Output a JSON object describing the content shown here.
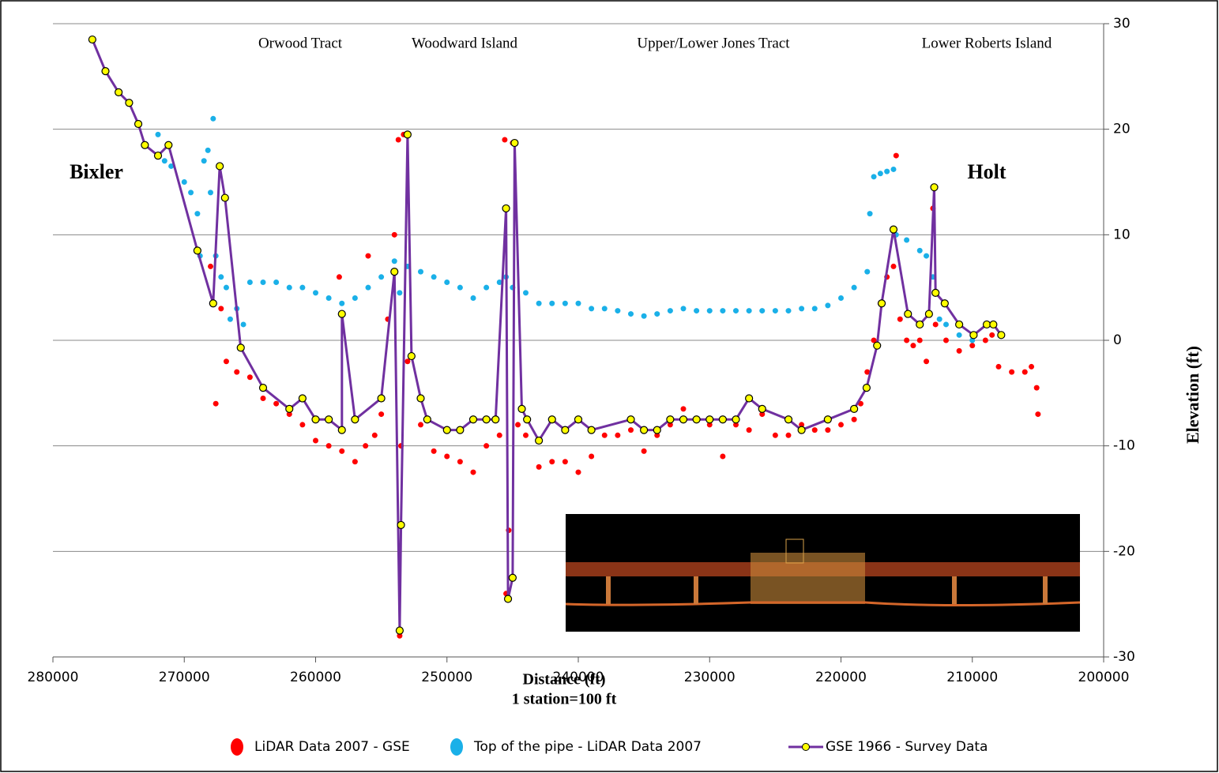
{
  "chart_data": {
    "type": "scatter",
    "annotations": [
      "Orwood Tract",
      "Woodward Island",
      "Upper/Lower Jones Tract",
      "Lower Roberts Island",
      "Bixler",
      "Holt"
    ],
    "xlabel": "Distance (ft)",
    "xlabel2": "1 station=100 ft",
    "ylabel": "Elevation (ft)",
    "xlim": [
      280000,
      200000
    ],
    "xticks": [
      280000,
      270000,
      260000,
      250000,
      240000,
      230000,
      220000,
      210000,
      200000
    ],
    "ylim": [
      -30,
      30
    ],
    "yticks": [
      -30,
      -20,
      -10,
      0,
      10,
      20,
      30
    ],
    "grid": true,
    "series": [
      {
        "name": "LiDAR Data 2007 - GSE",
        "color": "#ff0000",
        "line": false,
        "x": [
          268000,
          267600,
          267200,
          266800,
          266000,
          265000,
          264000,
          263000,
          262000,
          261000,
          260000,
          259000,
          258200,
          258000,
          257000,
          256200,
          256000,
          255500,
          255000,
          254500,
          254000,
          253700,
          253600,
          253500,
          253300,
          253000,
          252000,
          251000,
          250000,
          249000,
          248000,
          247000,
          246000,
          245600,
          245500,
          245300,
          245000,
          244600,
          244000,
          243000,
          242000,
          241000,
          240000,
          239000,
          238000,
          237000,
          236000,
          235000,
          234000,
          233000,
          232000,
          231000,
          230000,
          229000,
          228000,
          227000,
          226000,
          225000,
          224000,
          223000,
          222000,
          221000,
          220000,
          219000,
          218500,
          218000,
          217500,
          217000,
          216500,
          216000,
          215800,
          215500,
          215000,
          214500,
          214000,
          213500,
          213000,
          212800,
          212000,
          211000,
          210000,
          209000,
          208500,
          208000,
          207000,
          206000,
          205500,
          205100,
          205000
        ],
        "values": [
          7,
          -6,
          3,
          -2,
          -3,
          -3.5,
          -5.5,
          -6,
          -7,
          -8,
          -9.5,
          -10,
          6,
          -10.5,
          -11.5,
          -10,
          8,
          -9,
          -7,
          2,
          10,
          19,
          -28,
          -10,
          19.5,
          -2,
          -8,
          -10.5,
          -11,
          -11.5,
          -12.5,
          -10,
          -9,
          19,
          -24,
          -18,
          18.7,
          -8,
          -9,
          -12,
          -11.5,
          -11.5,
          -12.5,
          -11,
          -9,
          -9,
          -8.5,
          -10.5,
          -9,
          -8,
          -6.5,
          -7.5,
          -8,
          -11,
          -8,
          -8.5,
          -7,
          -9,
          -9,
          -8,
          -8.5,
          -8.5,
          -8,
          -7.5,
          -6,
          -3,
          0,
          3.5,
          6,
          7,
          17.5,
          2,
          0,
          -0.5,
          0,
          -2,
          12.5,
          1.5,
          0,
          -1,
          -0.5,
          0,
          0.5,
          -2.5,
          -3,
          -3,
          -2.5,
          -4.5,
          -7
        ]
      },
      {
        "name": "Top of the pipe - LiDAR Data 2007",
        "color": "#1ab0e8",
        "line": false,
        "x": [
          272000,
          271500,
          271000,
          270000,
          269500,
          269000,
          268800,
          268500,
          268200,
          268000,
          267800,
          267600,
          267200,
          266800,
          266500,
          266000,
          265500,
          265000,
          264000,
          263000,
          262000,
          261000,
          260000,
          259000,
          258000,
          257000,
          256000,
          255000,
          254000,
          253600,
          253000,
          252000,
          251000,
          250000,
          249000,
          248000,
          247000,
          246000,
          245500,
          245000,
          244000,
          243000,
          242000,
          241000,
          240000,
          239000,
          238000,
          237000,
          236000,
          235000,
          234000,
          233000,
          232000,
          231000,
          230000,
          229000,
          228000,
          227000,
          226000,
          225000,
          224000,
          223000,
          222000,
          221000,
          220000,
          219000,
          218000,
          217800,
          217500,
          217000,
          216500,
          216000,
          215800,
          215000,
          214000,
          213500,
          213000,
          212500,
          212000,
          211000,
          210000
        ],
        "values": [
          19.5,
          17,
          16.5,
          15,
          14,
          12,
          8,
          17,
          18,
          14,
          21,
          8,
          6,
          5,
          2,
          3,
          1.5,
          5.5,
          5.5,
          5.5,
          5,
          5,
          4.5,
          4,
          3.5,
          4,
          5,
          6,
          7.5,
          4.5,
          7,
          6.5,
          6,
          5.5,
          5,
          4,
          5,
          5.5,
          6,
          5,
          4.5,
          3.5,
          3.5,
          3.5,
          3.5,
          3,
          3,
          2.8,
          2.5,
          2.3,
          2.5,
          2.8,
          3,
          2.8,
          2.8,
          2.8,
          2.8,
          2.8,
          2.8,
          2.8,
          2.8,
          3,
          3,
          3.3,
          4,
          5,
          6.5,
          12,
          15.5,
          15.8,
          16,
          16.2,
          10,
          9.5,
          8.5,
          8,
          6,
          2,
          1.5,
          0.5,
          0
        ]
      },
      {
        "name": "GSE 1966 - Survey Data",
        "color": "#7030a0",
        "marker_color": "#ffff00",
        "line": true,
        "x": [
          277000,
          276000,
          275000,
          274200,
          273500,
          273000,
          272000,
          271200,
          269000,
          267800,
          267300,
          266900,
          265700,
          264000,
          262000,
          261000,
          260000,
          259000,
          258000,
          258000,
          257000,
          255000,
          254000,
          253600,
          253500,
          253000,
          252700,
          252000,
          251500,
          250000,
          249000,
          248000,
          247000,
          246300,
          245500,
          245350,
          245000,
          244850,
          244300,
          243900,
          243000,
          242000,
          241000,
          240000,
          239000,
          236000,
          235000,
          234000,
          233000,
          232000,
          231000,
          230000,
          229000,
          228000,
          227000,
          226000,
          224000,
          223000,
          221000,
          219000,
          218050,
          217250,
          216900,
          216000,
          214900,
          214000,
          213300,
          212900,
          212800,
          212100,
          211000,
          209900,
          208900,
          208400,
          207800
        ],
        "values": [
          28.5,
          25.5,
          23.5,
          22.5,
          20.5,
          18.5,
          17.5,
          18.5,
          8.5,
          3.5,
          16.5,
          13.5,
          -0.7,
          -4.5,
          -6.5,
          -5.5,
          -7.5,
          -7.5,
          -8.5,
          2.5,
          -7.5,
          -5.5,
          6.5,
          -27.5,
          -17.5,
          19.5,
          -1.5,
          -5.5,
          -7.5,
          -8.5,
          -8.5,
          -7.5,
          -7.5,
          -7.5,
          12.5,
          -24.5,
          -22.5,
          18.7,
          -6.5,
          -7.5,
          -9.5,
          -7.5,
          -8.5,
          -7.5,
          -8.5,
          -7.5,
          -8.5,
          -8.5,
          -7.5,
          -7.5,
          -7.5,
          -7.5,
          -7.5,
          -7.5,
          -5.5,
          -6.5,
          -7.5,
          -8.5,
          -7.5,
          -6.5,
          -4.5,
          -0.5,
          3.5,
          10.5,
          2.5,
          1.5,
          2.5,
          14.5,
          4.5,
          3.5,
          1.5,
          0.5,
          1.5,
          1.5,
          0.5
        ]
      }
    ]
  }
}
